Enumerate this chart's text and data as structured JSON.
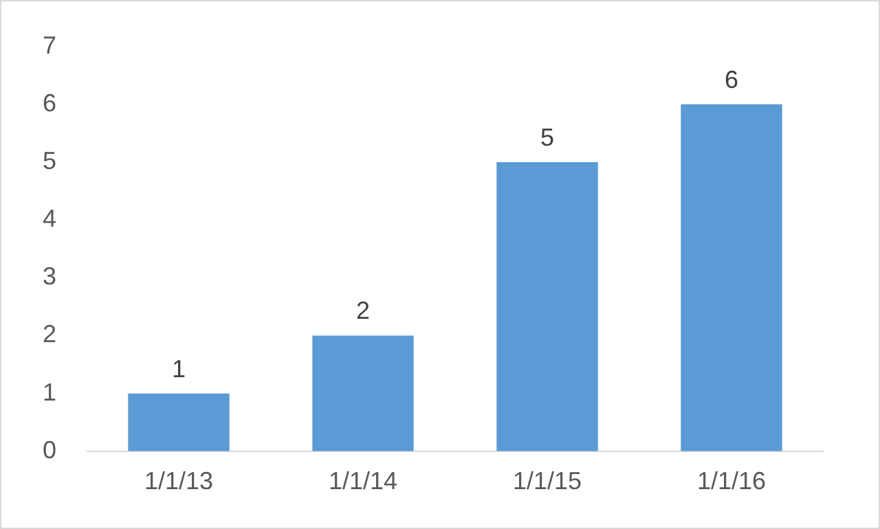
{
  "chart_data": {
    "type": "bar",
    "categories": [
      "1/1/13",
      "1/1/14",
      "1/1/15",
      "1/1/16"
    ],
    "values": [
      1,
      2,
      5,
      6
    ],
    "color": "#5b9bd5",
    "ylim": [
      0,
      7
    ],
    "yticks": [
      0,
      1,
      2,
      3,
      4,
      5,
      6,
      7
    ],
    "grid": false,
    "legend": false,
    "data_labels": true
  }
}
